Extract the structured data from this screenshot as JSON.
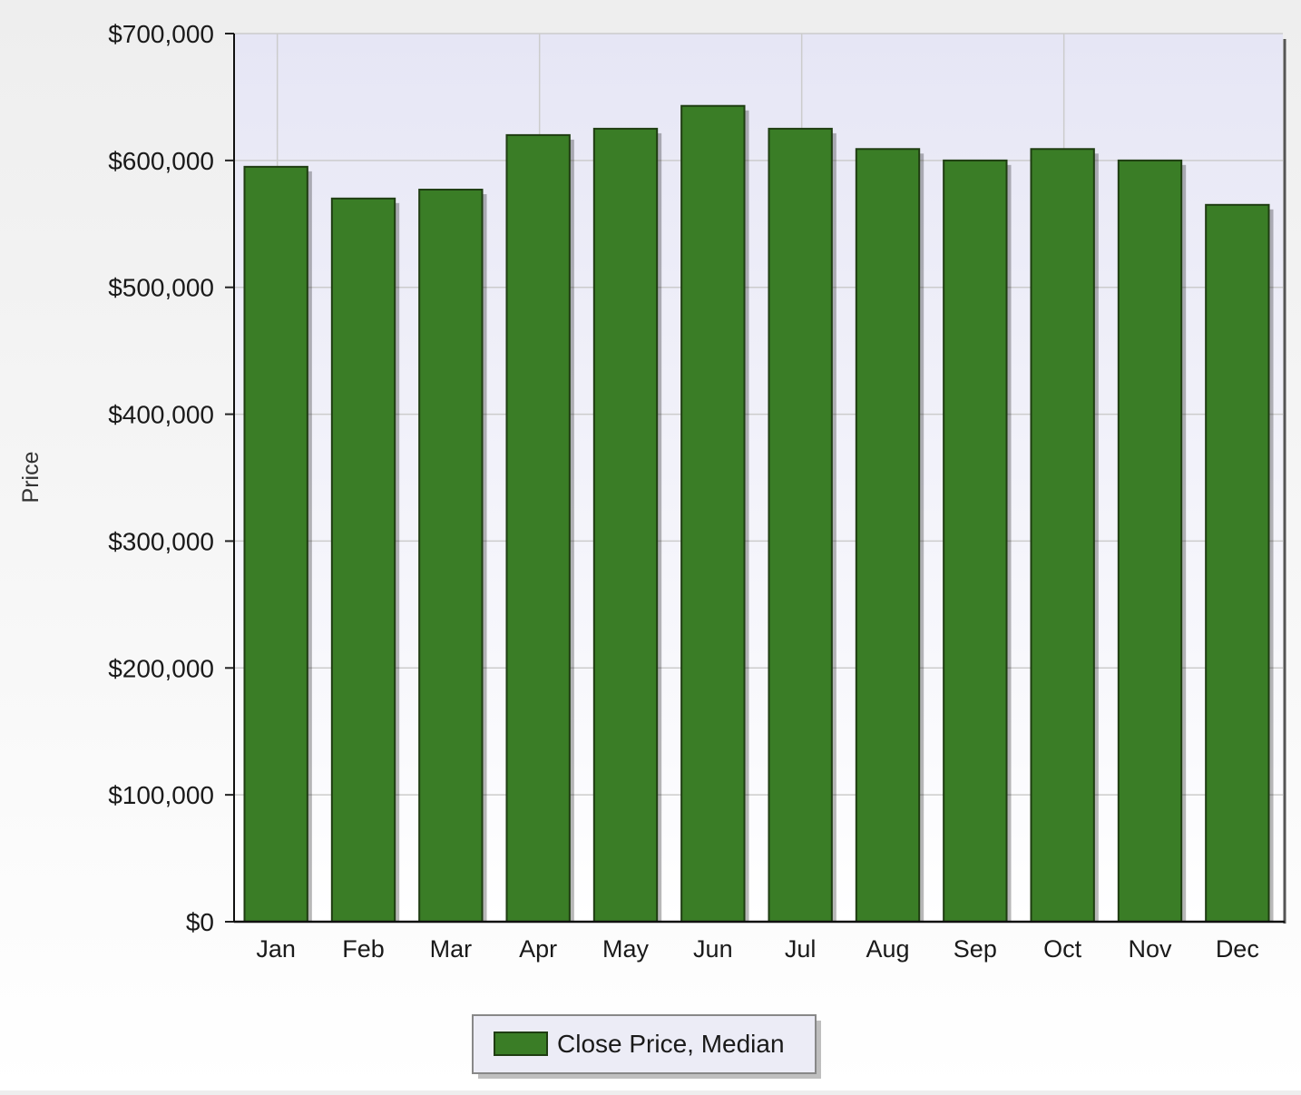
{
  "chart_data": {
    "type": "bar",
    "title": "",
    "xlabel": "",
    "ylabel": "Price",
    "ylim": [
      0,
      700000
    ],
    "yticks": [
      0,
      100000,
      200000,
      300000,
      400000,
      500000,
      600000,
      700000
    ],
    "ytick_labels": [
      "$0",
      "$100,000",
      "$200,000",
      "$300,000",
      "$400,000",
      "$500,000",
      "$600,000",
      "$700,000"
    ],
    "categories": [
      "Jan",
      "Feb",
      "Mar",
      "Apr",
      "May",
      "Jun",
      "Jul",
      "Aug",
      "Sep",
      "Oct",
      "Nov",
      "Dec"
    ],
    "series": [
      {
        "name": "Close Price, Median",
        "values": [
          595000,
          570000,
          577000,
          620000,
          625000,
          643000,
          625000,
          609000,
          600000,
          609000,
          600000,
          565000
        ]
      }
    ],
    "grid": true,
    "legend_position": "bottom-center",
    "colors": {
      "bar": "#3a7d26",
      "bar_stroke": "#1f3d12",
      "plot_top": "#e6e6f5",
      "plot_bottom": "#ffffff",
      "grid": "#cccccc"
    }
  }
}
